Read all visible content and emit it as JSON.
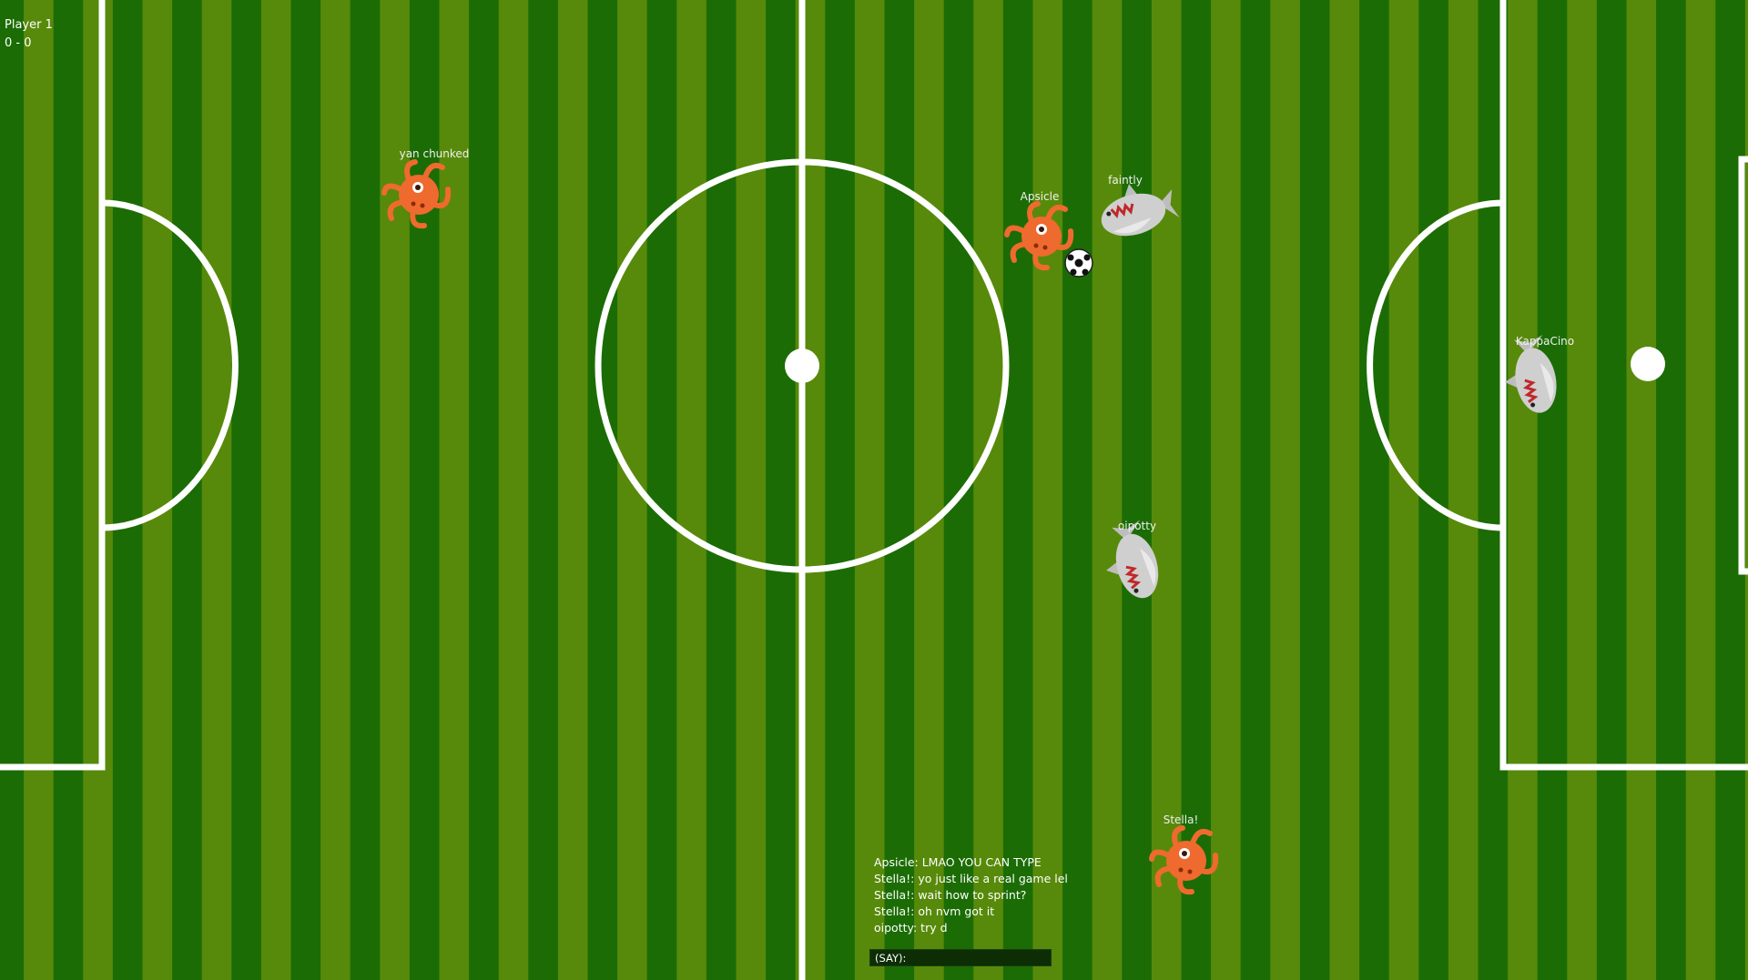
{
  "hud": {
    "player_label": "Player 1",
    "score": "0 - 0"
  },
  "colors": {
    "stripe_dark": "#1b6c05",
    "stripe_light": "#578a0a",
    "line": "#ffffff",
    "octopus": "#ef6a2e",
    "shark": "#c9c9c9"
  },
  "players": [
    {
      "name": "yan chunked",
      "creature": "octopus-icon"
    },
    {
      "name": "Apsicle",
      "creature": "octopus-icon"
    },
    {
      "name": "faintly",
      "creature": "shark-icon"
    },
    {
      "name": "KappaCino",
      "creature": "shark-icon"
    },
    {
      "name": "oipotty",
      "creature": "shark-icon"
    },
    {
      "name": "Stella!",
      "creature": "octopus-icon"
    }
  ],
  "chat": {
    "messages": [
      "Apsicle: LMAO YOU CAN TYPE",
      "Stella!: yo just like a real game lel",
      "Stella!: wait how to sprint?",
      "Stella!: oh nvm got it",
      "oipotty: try d"
    ],
    "input_label": "(SAY):",
    "input_value": ""
  }
}
